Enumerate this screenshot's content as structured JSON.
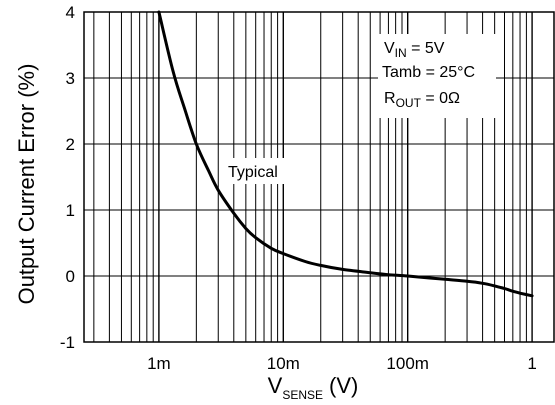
{
  "chart_data": {
    "type": "line",
    "x_scale": "log",
    "xlim": [
      0.00025,
      1.5
    ],
    "ylim": [
      -1,
      4
    ],
    "grid": true,
    "xlabel": {
      "main": "V",
      "sub": "SENSE",
      "unit": "(V)"
    },
    "ylabel": "Output Current Error (%)",
    "x_ticks": [
      {
        "value": 0.001,
        "label": "1m"
      },
      {
        "value": 0.01,
        "label": "10m"
      },
      {
        "value": 0.1,
        "label": "100m"
      },
      {
        "value": 1,
        "label": "1"
      }
    ],
    "y_ticks": [
      {
        "value": 4,
        "label": "4"
      },
      {
        "value": 3,
        "label": "3"
      },
      {
        "value": 2,
        "label": "2"
      },
      {
        "value": 1,
        "label": "1"
      },
      {
        "value": 0,
        "label": "0"
      },
      {
        "value": -1,
        "label": "-1"
      }
    ],
    "series": [
      {
        "name": "Typical",
        "x": [
          0.001,
          0.0013,
          0.0016,
          0.002,
          0.0025,
          0.003,
          0.004,
          0.005,
          0.006,
          0.008,
          0.01,
          0.015,
          0.02,
          0.03,
          0.05,
          0.07,
          0.1,
          0.15,
          0.2,
          0.3,
          0.4,
          0.5,
          0.6,
          0.7,
          0.8,
          1.0
        ],
        "y": [
          4.0,
          3.1,
          2.55,
          2.0,
          1.6,
          1.3,
          0.95,
          0.72,
          0.58,
          0.42,
          0.34,
          0.22,
          0.16,
          0.1,
          0.05,
          0.02,
          0.0,
          -0.03,
          -0.05,
          -0.08,
          -0.11,
          -0.15,
          -0.19,
          -0.23,
          -0.26,
          -0.3
        ]
      }
    ],
    "annotation": {
      "vin": {
        "main": "V",
        "sub": "IN",
        "value": " = 5V"
      },
      "tamb": "Tamb = 25°C",
      "rout": {
        "main": "R",
        "sub": "OUT",
        "value": " = 0Ω"
      }
    }
  }
}
